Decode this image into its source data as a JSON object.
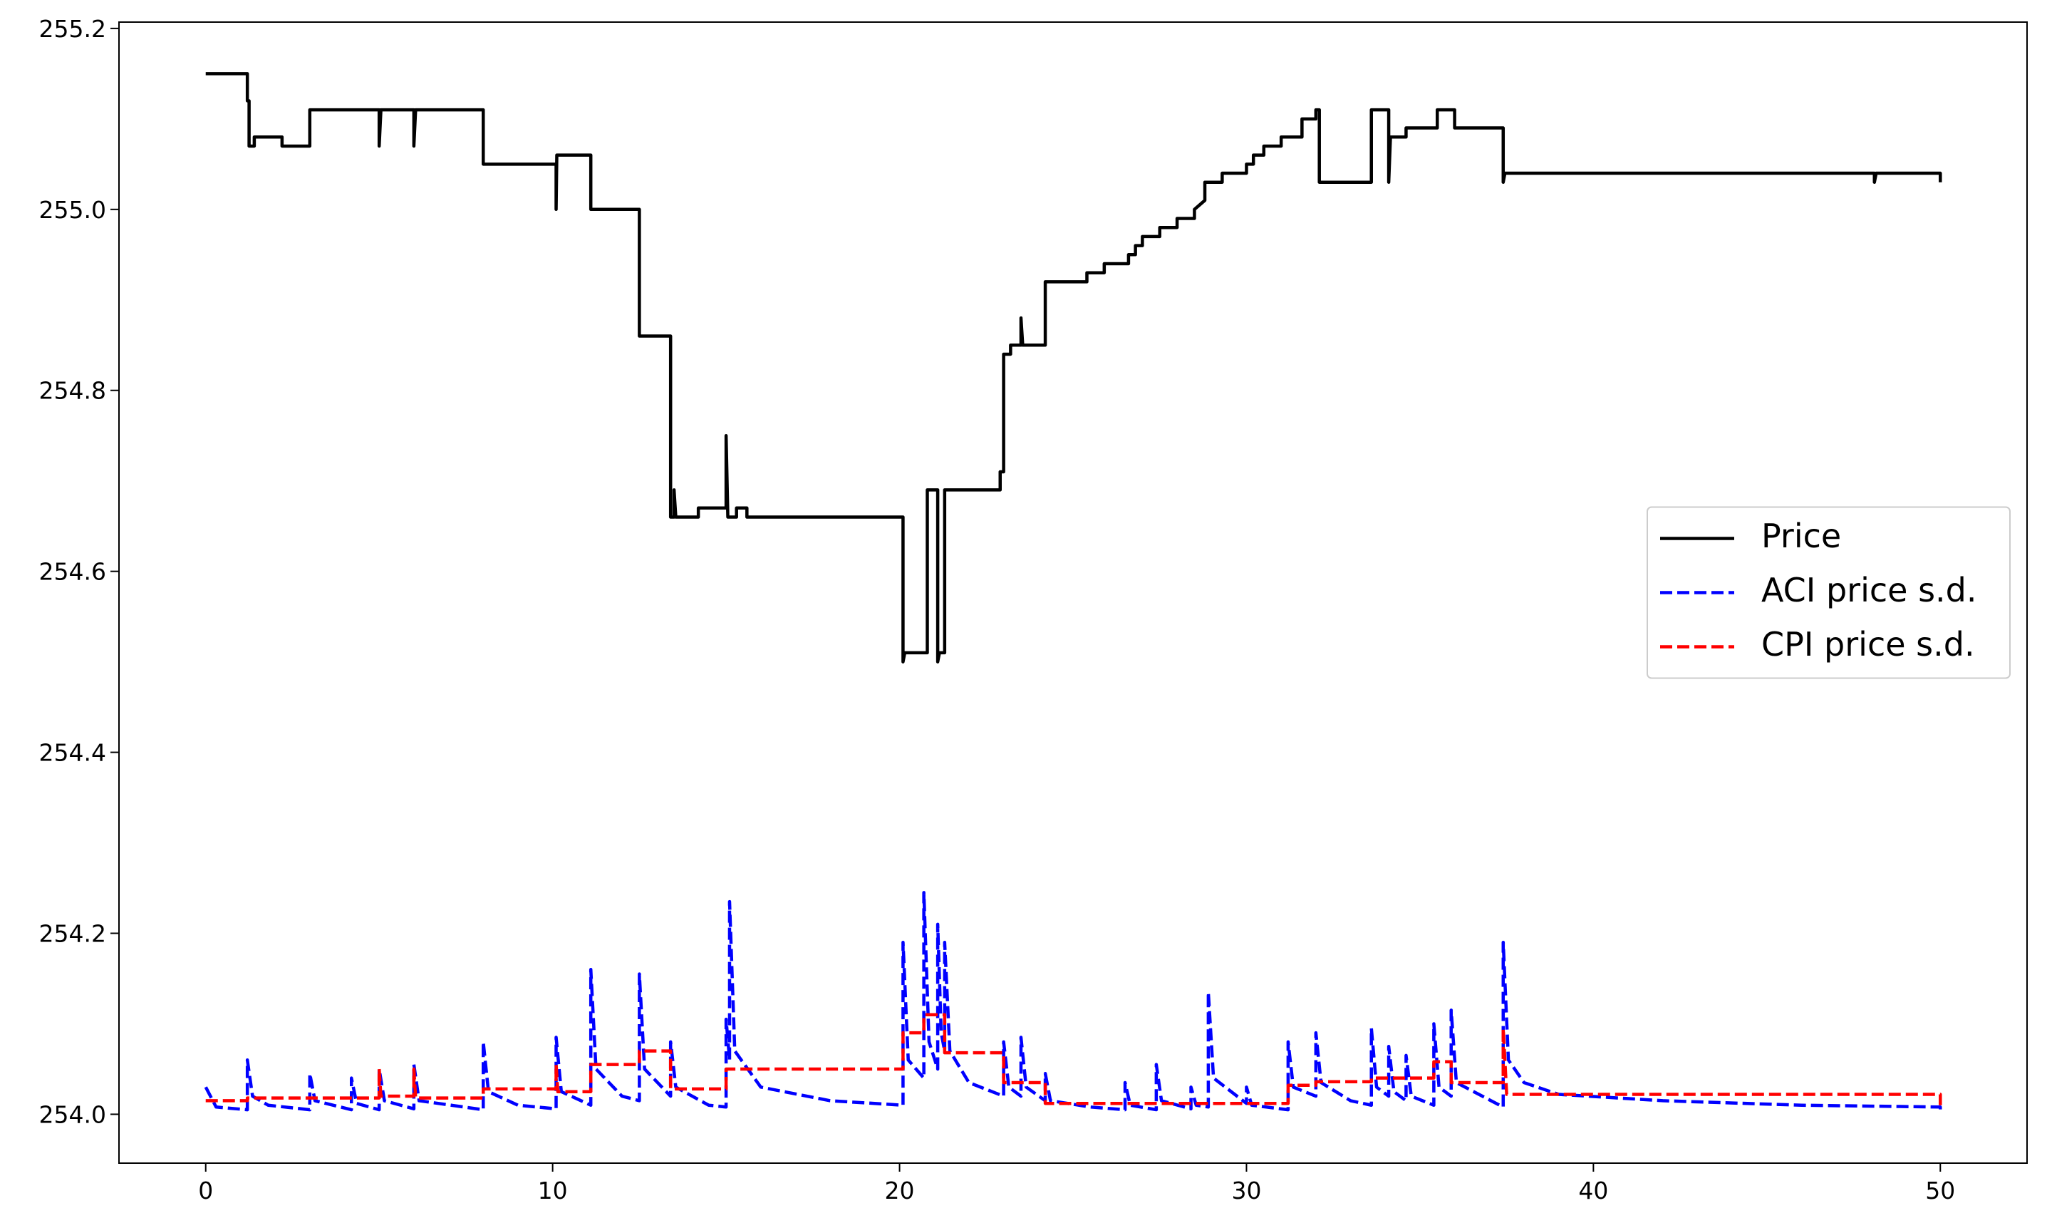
{
  "chart_data": {
    "type": "line",
    "xlim": [
      -2.5,
      52.5
    ],
    "ylim": [
      253.946,
      255.207
    ],
    "xticks": [
      0,
      10,
      20,
      30,
      40,
      50
    ],
    "yticks": [
      {
        "value": 254,
        "label": "254.0"
      },
      254.2,
      254.4,
      254.6,
      254.8,
      {
        "value": 255,
        "label": "255.0"
      },
      255.2
    ],
    "legend": "center right",
    "series": [
      {
        "name": "Price",
        "color": "#000000",
        "linestyle": "solid",
        "x": [
          0,
          1.2,
          1.2,
          1.25,
          1.25,
          1.4,
          1.4,
          2.2,
          2.2,
          3.0,
          3.0,
          5.0,
          5.0,
          5.05,
          6.0,
          6.0,
          6.05,
          8.0,
          8.0,
          10.1,
          10.1,
          10.12,
          11.1,
          11.1,
          12.5,
          12.5,
          13.4,
          13.4,
          13.5,
          13.5,
          13.55,
          14.2,
          14.2,
          15.0,
          15.0,
          15.05,
          15.3,
          15.3,
          15.6,
          15.6,
          20.1,
          20.1,
          20.15,
          20.8,
          20.8,
          21.1,
          21.1,
          21.15,
          21.3,
          21.3,
          22.9,
          22.9,
          23.0,
          23.0,
          23.2,
          23.2,
          23.5,
          23.5,
          23.55,
          24.2,
          24.2,
          25.4,
          25.4,
          25.9,
          25.9,
          26.6,
          26.6,
          26.8,
          26.8,
          27.0,
          27.0,
          27.5,
          27.5,
          28.0,
          28.0,
          28.5,
          28.5,
          28.8,
          28.8,
          29.3,
          29.3,
          30.0,
          30.0,
          30.2,
          30.2,
          30.5,
          30.5,
          31.0,
          31.0,
          31.6,
          31.6,
          32.0,
          32.0,
          32.1,
          32.1,
          33.6,
          33.6,
          34.1,
          34.1,
          34.15,
          34.6,
          34.6,
          35.5,
          35.5,
          36.0,
          36.0,
          37.4,
          37.4,
          37.45,
          48.1,
          48.1,
          48.15,
          50,
          50
        ],
        "values": [
          255.15,
          255.15,
          255.12,
          255.12,
          255.07,
          255.07,
          255.08,
          255.08,
          255.07,
          255.07,
          255.11,
          255.11,
          255.07,
          255.11,
          255.11,
          255.07,
          255.11,
          255.11,
          255.05,
          255.05,
          255.0,
          255.06,
          255.06,
          255.0,
          255.0,
          254.86,
          254.86,
          254.66,
          254.66,
          254.69,
          254.66,
          254.66,
          254.67,
          254.67,
          254.75,
          254.66,
          254.66,
          254.67,
          254.67,
          254.66,
          254.66,
          254.5,
          254.51,
          254.51,
          254.69,
          254.69,
          254.5,
          254.51,
          254.51,
          254.69,
          254.69,
          254.71,
          254.71,
          254.84,
          254.84,
          254.85,
          254.85,
          254.88,
          254.85,
          254.85,
          254.92,
          254.92,
          254.93,
          254.93,
          254.94,
          254.94,
          254.95,
          254.95,
          254.96,
          254.96,
          254.97,
          254.97,
          254.98,
          254.98,
          254.99,
          254.99,
          255.0,
          255.01,
          255.03,
          255.03,
          255.04,
          255.04,
          255.05,
          255.05,
          255.06,
          255.06,
          255.07,
          255.07,
          255.08,
          255.08,
          255.1,
          255.1,
          255.11,
          255.11,
          255.03,
          255.03,
          255.11,
          255.11,
          255.03,
          255.08,
          255.08,
          255.09,
          255.09,
          255.11,
          255.11,
          255.09,
          255.09,
          255.03,
          255.04,
          255.04,
          255.03,
          255.04,
          255.04,
          255.03
        ]
      },
      {
        "name": "ACI price s.d.",
        "color": "#0000ff",
        "linestyle": "dashed",
        "x": [
          0,
          0.3,
          1.2,
          1.2,
          1.35,
          1.8,
          3.0,
          3.0,
          3.15,
          4.2,
          4.2,
          4.35,
          5.0,
          5.0,
          5.15,
          6.0,
          6.0,
          6.15,
          8.0,
          8.0,
          8.15,
          9.0,
          10.1,
          10.1,
          10.25,
          11.1,
          11.1,
          11.25,
          12.0,
          12.5,
          12.5,
          12.65,
          13.4,
          13.4,
          13.55,
          14.5,
          15.0,
          15.0,
          15.1,
          15.1,
          15.25,
          16,
          18,
          20.1,
          20.1,
          20.25,
          20.7,
          20.7,
          20.85,
          21.1,
          21.1,
          21.2,
          21.3,
          21.3,
          21.45,
          22,
          23.0,
          23.0,
          23.15,
          23.5,
          23.5,
          23.65,
          24.2,
          24.2,
          24.35,
          25.5,
          26.5,
          26.5,
          26.65,
          27.4,
          27.4,
          27.55,
          28.4,
          28.4,
          28.55,
          28.9,
          28.9,
          29.05,
          30.0,
          30.0,
          30.15,
          31.2,
          31.2,
          31.35,
          32.0,
          32.0,
          32.15,
          33.0,
          33.6,
          33.6,
          33.75,
          34.1,
          34.1,
          34.25,
          34.6,
          34.6,
          34.75,
          35.4,
          35.4,
          35.55,
          35.9,
          35.9,
          36.05,
          37.4,
          37.4,
          37.55,
          38,
          39,
          42,
          46,
          50,
          50
        ],
        "values": [
          254.03,
          254.008,
          254.005,
          254.06,
          254.02,
          254.01,
          254.005,
          254.045,
          254.015,
          254.005,
          254.04,
          254.012,
          254.005,
          254.05,
          254.015,
          254.006,
          254.055,
          254.015,
          254.005,
          254.08,
          254.025,
          254.01,
          254.006,
          254.085,
          254.025,
          254.01,
          254.16,
          254.05,
          254.02,
          254.015,
          254.155,
          254.05,
          254.02,
          254.08,
          254.03,
          254.01,
          254.008,
          254.105,
          254.06,
          254.235,
          254.07,
          254.03,
          254.015,
          254.01,
          254.19,
          254.06,
          254.04,
          254.245,
          254.08,
          254.05,
          254.21,
          254.09,
          254.07,
          254.19,
          254.07,
          254.035,
          254.02,
          254.08,
          254.03,
          254.02,
          254.085,
          254.03,
          254.015,
          254.045,
          254.015,
          254.008,
          254.005,
          254.035,
          254.01,
          254.005,
          254.055,
          254.015,
          254.006,
          254.03,
          254.01,
          254.008,
          254.135,
          254.04,
          254.012,
          254.03,
          254.01,
          254.005,
          254.08,
          254.03,
          254.02,
          254.09,
          254.035,
          254.015,
          254.01,
          254.095,
          254.03,
          254.02,
          254.075,
          254.025,
          254.015,
          254.065,
          254.02,
          254.01,
          254.1,
          254.03,
          254.02,
          254.115,
          254.035,
          254.008,
          254.19,
          254.06,
          254.035,
          254.022,
          254.015,
          254.01,
          254.008,
          254.003
        ]
      },
      {
        "name": "CPI price s.d.",
        "color": "#ff0000",
        "linestyle": "dashed",
        "x": [
          0,
          1.2,
          1.2,
          5.0,
          5.0,
          5.05,
          6.0,
          6.0,
          6.05,
          8.0,
          8.0,
          10.1,
          10.1,
          10.15,
          11.1,
          11.1,
          12.5,
          12.5,
          13.4,
          13.4,
          15.0,
          15.0,
          20.1,
          20.1,
          20.7,
          20.7,
          21.3,
          21.3,
          23.0,
          23.0,
          24.2,
          24.2,
          31.2,
          31.2,
          32.0,
          32.0,
          33.6,
          33.6,
          35.4,
          35.4,
          35.9,
          35.9,
          37.4,
          37.4,
          37.5,
          50,
          50
        ],
        "values": [
          254.015,
          254.015,
          254.018,
          254.018,
          254.05,
          254.02,
          254.02,
          254.05,
          254.018,
          254.018,
          254.028,
          254.028,
          254.055,
          254.025,
          254.025,
          254.055,
          254.055,
          254.07,
          254.07,
          254.028,
          254.028,
          254.05,
          254.05,
          254.09,
          254.09,
          254.11,
          254.11,
          254.068,
          254.068,
          254.035,
          254.035,
          254.012,
          254.012,
          254.032,
          254.032,
          254.036,
          254.036,
          254.04,
          254.04,
          254.058,
          254.058,
          254.035,
          254.035,
          254.095,
          254.022,
          254.022,
          254.01
        ]
      }
    ]
  }
}
